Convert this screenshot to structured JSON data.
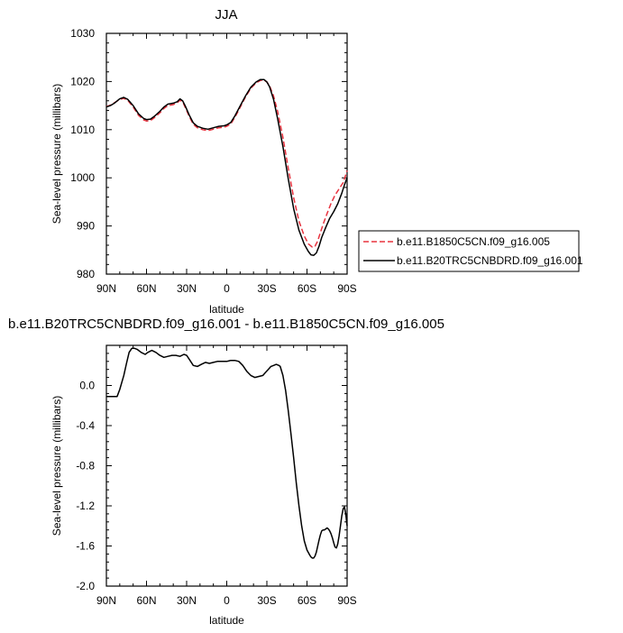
{
  "chart_data": [
    {
      "type": "line",
      "title": "JJA",
      "xlabel": "latitude",
      "ylabel": "Sea-level pressure (millibars)",
      "xlim": [
        90,
        -90
      ],
      "ylim": [
        980,
        1030
      ],
      "x_ticks": [
        {
          "value": 90,
          "label": "90N"
        },
        {
          "value": 60,
          "label": "60N"
        },
        {
          "value": 30,
          "label": "30N"
        },
        {
          "value": 0,
          "label": "0"
        },
        {
          "value": -30,
          "label": "30S"
        },
        {
          "value": -60,
          "label": "60S"
        },
        {
          "value": -90,
          "label": "90S"
        }
      ],
      "y_ticks": [
        {
          "value": 980,
          "label": "980"
        },
        {
          "value": 990,
          "label": "990"
        },
        {
          "value": 1000,
          "label": "1000"
        },
        {
          "value": 1010,
          "label": "1010"
        },
        {
          "value": 1020,
          "label": "1020"
        },
        {
          "value": 1030,
          "label": "1030"
        }
      ],
      "legend_position": "right",
      "series": [
        {
          "name": "b.e11.B1850C5CN.f09_g16.005",
          "color": "#e8333f",
          "style": "dashed",
          "x": [
            90,
            87,
            84,
            80,
            77,
            74,
            70,
            66,
            62,
            60,
            57,
            54,
            50,
            47,
            44,
            40,
            37,
            35,
            33,
            31,
            28,
            25,
            22,
            18,
            14,
            10,
            6,
            2,
            0,
            -3,
            -6,
            -10,
            -14,
            -18,
            -22,
            -25,
            -28,
            -30,
            -32,
            -35,
            -38,
            -42,
            -46,
            -50,
            -54,
            -58,
            -61,
            -64,
            -66,
            -68,
            -70,
            -72,
            -75,
            -78,
            -81,
            -84,
            -87,
            -88.5,
            -90
          ],
          "y": [
            1014.8,
            1015.1,
            1015.6,
            1016.3,
            1016.5,
            1016.1,
            1014.7,
            1013.0,
            1012.0,
            1011.8,
            1011.9,
            1012.5,
            1013.5,
            1014.4,
            1015.0,
            1015.2,
            1015.6,
            1016.1,
            1015.8,
            1014.6,
            1012.7,
            1011.1,
            1010.4,
            1010.0,
            1009.8,
            1010.1,
            1010.4,
            1010.5,
            1010.7,
            1011.2,
            1012.5,
            1014.6,
            1016.8,
            1018.6,
            1019.7,
            1020.2,
            1020.3,
            1019.9,
            1019.1,
            1017.0,
            1013.8,
            1008.4,
            1002.0,
            995.9,
            991.0,
            987.9,
            986.3,
            985.6,
            985.8,
            986.9,
            988.6,
            990.3,
            992.6,
            994.7,
            996.4,
            997.7,
            999.0,
            1000.2,
            1001.5
          ]
        },
        {
          "name": "b.e11.B20TRC5CNBDRD.f09_g16.001",
          "color": "#000000",
          "style": "solid",
          "x": [
            90,
            87,
            84,
            80,
            77,
            74,
            70,
            66,
            62,
            60,
            57,
            54,
            50,
            47,
            44,
            40,
            37,
            35,
            33,
            31,
            28,
            25,
            22,
            18,
            14,
            10,
            6,
            2,
            0,
            -3,
            -6,
            -10,
            -14,
            -18,
            -22,
            -25,
            -28,
            -30,
            -32,
            -35,
            -38,
            -42,
            -46,
            -50,
            -54,
            -58,
            -61,
            -63,
            -65,
            -67,
            -69,
            -71,
            -74,
            -77,
            -80,
            -83,
            -86,
            -88,
            -90
          ],
          "y": [
            1014.7,
            1015.0,
            1015.5,
            1016.4,
            1016.7,
            1016.3,
            1015.0,
            1013.3,
            1012.3,
            1012.1,
            1012.2,
            1012.8,
            1013.8,
            1014.7,
            1015.3,
            1015.5,
            1015.8,
            1016.4,
            1016.0,
            1014.9,
            1013.0,
            1011.4,
            1010.7,
            1010.3,
            1010.1,
            1010.4,
            1010.7,
            1010.8,
            1011.0,
            1011.5,
            1012.8,
            1014.9,
            1017.0,
            1018.8,
            1019.9,
            1020.4,
            1020.4,
            1019.9,
            1018.9,
            1016.3,
            1012.3,
            1006.5,
            999.8,
            993.6,
            989.1,
            986.2,
            984.7,
            984.0,
            983.9,
            984.4,
            985.8,
            987.6,
            989.7,
            991.6,
            993.0,
            994.6,
            996.8,
            998.5,
            1000.0
          ]
        }
      ]
    },
    {
      "type": "line",
      "title": "b.e11.B20TRC5CNBDRD.f09_g16.001 - b.e11.B1850C5CN.f09_g16.005",
      "xlabel": "latitude",
      "ylabel": "Sea-level pressure (millibars)",
      "xlim": [
        90,
        -90
      ],
      "ylim": [
        -2.0,
        0.4
      ],
      "x_ticks": [
        {
          "value": 90,
          "label": "90N"
        },
        {
          "value": 60,
          "label": "60N"
        },
        {
          "value": 30,
          "label": "30N"
        },
        {
          "value": 0,
          "label": "0"
        },
        {
          "value": -30,
          "label": "30S"
        },
        {
          "value": -60,
          "label": "60S"
        },
        {
          "value": -90,
          "label": "90S"
        }
      ],
      "y_ticks": [
        {
          "value": -2.0,
          "label": "-2.0"
        },
        {
          "value": -1.6,
          "label": "-1.6"
        },
        {
          "value": -1.2,
          "label": "-1.2"
        },
        {
          "value": -0.8,
          "label": "-0.8"
        },
        {
          "value": -0.4,
          "label": "-0.4"
        },
        {
          "value": 0.0,
          "label": "0.0"
        }
      ],
      "series": [
        {
          "color": "#000000",
          "style": "solid",
          "x": [
            90,
            88,
            85,
            82,
            80,
            77,
            75,
            73,
            71,
            69,
            67,
            64,
            61,
            59,
            56,
            53,
            50,
            47,
            44,
            41,
            38,
            35,
            32,
            30,
            28,
            25,
            22,
            19,
            16,
            13,
            10,
            7,
            4,
            0,
            -3,
            -6,
            -9,
            -12,
            -15,
            -18,
            -21,
            -24,
            -27,
            -29,
            -31,
            -33,
            -35,
            -37,
            -39,
            -40,
            -42,
            -44,
            -46,
            -48,
            -50,
            -52,
            -54,
            -56,
            -58,
            -60,
            -62,
            -63,
            -64,
            -65,
            -66,
            -67,
            -68,
            -69,
            -70,
            -71,
            -72,
            -73,
            -74,
            -75,
            -76,
            -77,
            -78,
            -79,
            -80,
            -81,
            -82,
            -83,
            -84,
            -85,
            -86,
            -87,
            -88,
            -89,
            -90
          ],
          "y": [
            -0.11,
            -0.11,
            -0.11,
            -0.11,
            -0.04,
            0.1,
            0.22,
            0.33,
            0.37,
            0.37,
            0.36,
            0.33,
            0.31,
            0.33,
            0.35,
            0.33,
            0.3,
            0.28,
            0.29,
            0.3,
            0.3,
            0.29,
            0.31,
            0.3,
            0.26,
            0.2,
            0.19,
            0.21,
            0.23,
            0.22,
            0.23,
            0.24,
            0.24,
            0.24,
            0.25,
            0.25,
            0.24,
            0.2,
            0.14,
            0.1,
            0.08,
            0.09,
            0.1,
            0.13,
            0.16,
            0.19,
            0.2,
            0.21,
            0.2,
            0.19,
            0.1,
            -0.05,
            -0.25,
            -0.48,
            -0.72,
            -0.97,
            -1.2,
            -1.4,
            -1.55,
            -1.64,
            -1.69,
            -1.71,
            -1.72,
            -1.72,
            -1.7,
            -1.66,
            -1.6,
            -1.54,
            -1.49,
            -1.45,
            -1.44,
            -1.44,
            -1.43,
            -1.42,
            -1.43,
            -1.45,
            -1.48,
            -1.52,
            -1.57,
            -1.61,
            -1.62,
            -1.58,
            -1.5,
            -1.4,
            -1.3,
            -1.23,
            -1.21,
            -1.28,
            -1.4
          ]
        }
      ]
    }
  ]
}
